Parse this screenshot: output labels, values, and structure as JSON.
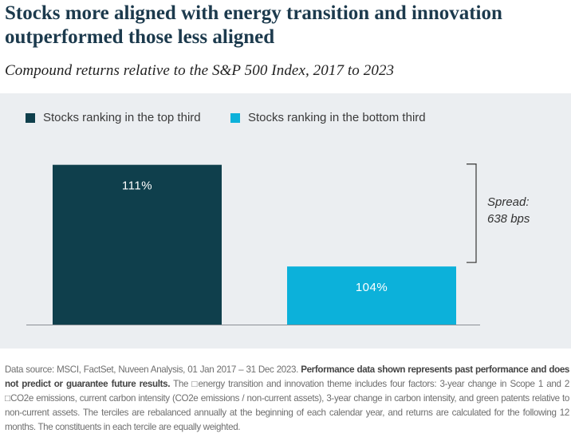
{
  "title": "Stocks more aligned with energy transition and innovation outperformed those less aligned",
  "subtitle": "Compound returns relative to the S&P 500 Index, 2017 to 2023",
  "colors": {
    "top_third": "#0f3f4c",
    "bottom_third": "#0cb1da",
    "bar_label": "#ffffff",
    "panel_bg": "#ebeef1"
  },
  "chart_data": {
    "type": "bar",
    "title": "Compound returns relative to the S&P 500 Index, 2017 to 2023",
    "categories": [
      "Stocks ranking in the top third",
      "Stocks ranking in the bottom third"
    ],
    "series": [
      {
        "name": "Stocks ranking in the top third",
        "values": [
          111,
          null
        ]
      },
      {
        "name": "Stocks ranking in the bottom third",
        "values": [
          null,
          104
        ]
      }
    ],
    "values": [
      111,
      104
    ],
    "data_labels": [
      "111%",
      "104%"
    ],
    "ylim": [
      100,
      112.3
    ],
    "xlabel": "",
    "ylabel": "",
    "grid": false,
    "legend_position": "top-left",
    "annotation": {
      "line1": "Spread:",
      "line2": "638 bps"
    }
  },
  "footnote": {
    "source": "Data source: MSCI, FactSet, Nuveen Analysis, 01 Jan 2017 – 31 Dec 2023.",
    "disclaimer": "Performance data shown represents past performance and does not predict or guarantee future results.",
    "methodology": "The □energy transition and innovation theme includes four factors: 3-year change in Scope 1 and 2 □CO2e emissions, current carbon intensity (CO2e emissions / non-current assets), 3-year change in carbon intensity, and green patents relative to non-current assets. The terciles are rebalanced annually at the beginning of each calendar year, and returns are calculated for the following 12 months. The constituents in each tercile are equally weighted."
  }
}
